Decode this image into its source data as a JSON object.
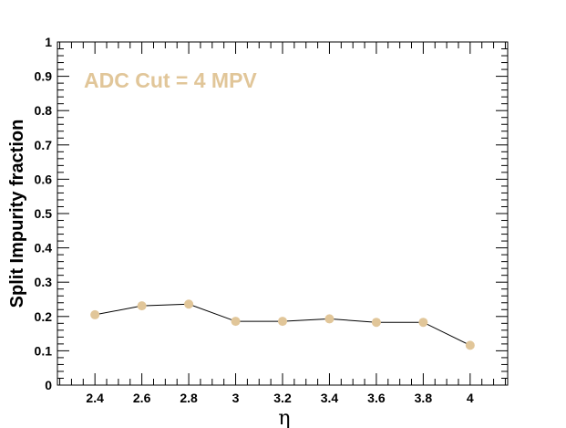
{
  "chart_data": {
    "type": "line",
    "title": "",
    "xlabel": "η",
    "ylabel": "Split Impurity fraction",
    "annotation": "ADC Cut = 4 MPV",
    "xlim": [
      2.24,
      4.16
    ],
    "ylim": [
      0,
      1
    ],
    "x_ticks": [
      "2.4",
      "2.6",
      "2.8",
      "3",
      "3.2",
      "3.4",
      "3.6",
      "3.8",
      "4"
    ],
    "y_ticks": [
      "0",
      "0.1",
      "0.2",
      "0.3",
      "0.4",
      "0.5",
      "0.6",
      "0.7",
      "0.8",
      "0.9",
      "1"
    ],
    "grid": false,
    "series": [
      {
        "x": [
          2.4,
          2.6,
          2.8,
          3.0,
          3.2,
          3.4,
          3.6,
          3.8,
          4.0
        ],
        "y": [
          0.205,
          0.231,
          0.236,
          0.186,
          0.186,
          0.193,
          0.183,
          0.183,
          0.116
        ]
      }
    ],
    "colors": {
      "marker": "#e1c699",
      "line": "#000000",
      "annotation": "#e1c699"
    }
  }
}
